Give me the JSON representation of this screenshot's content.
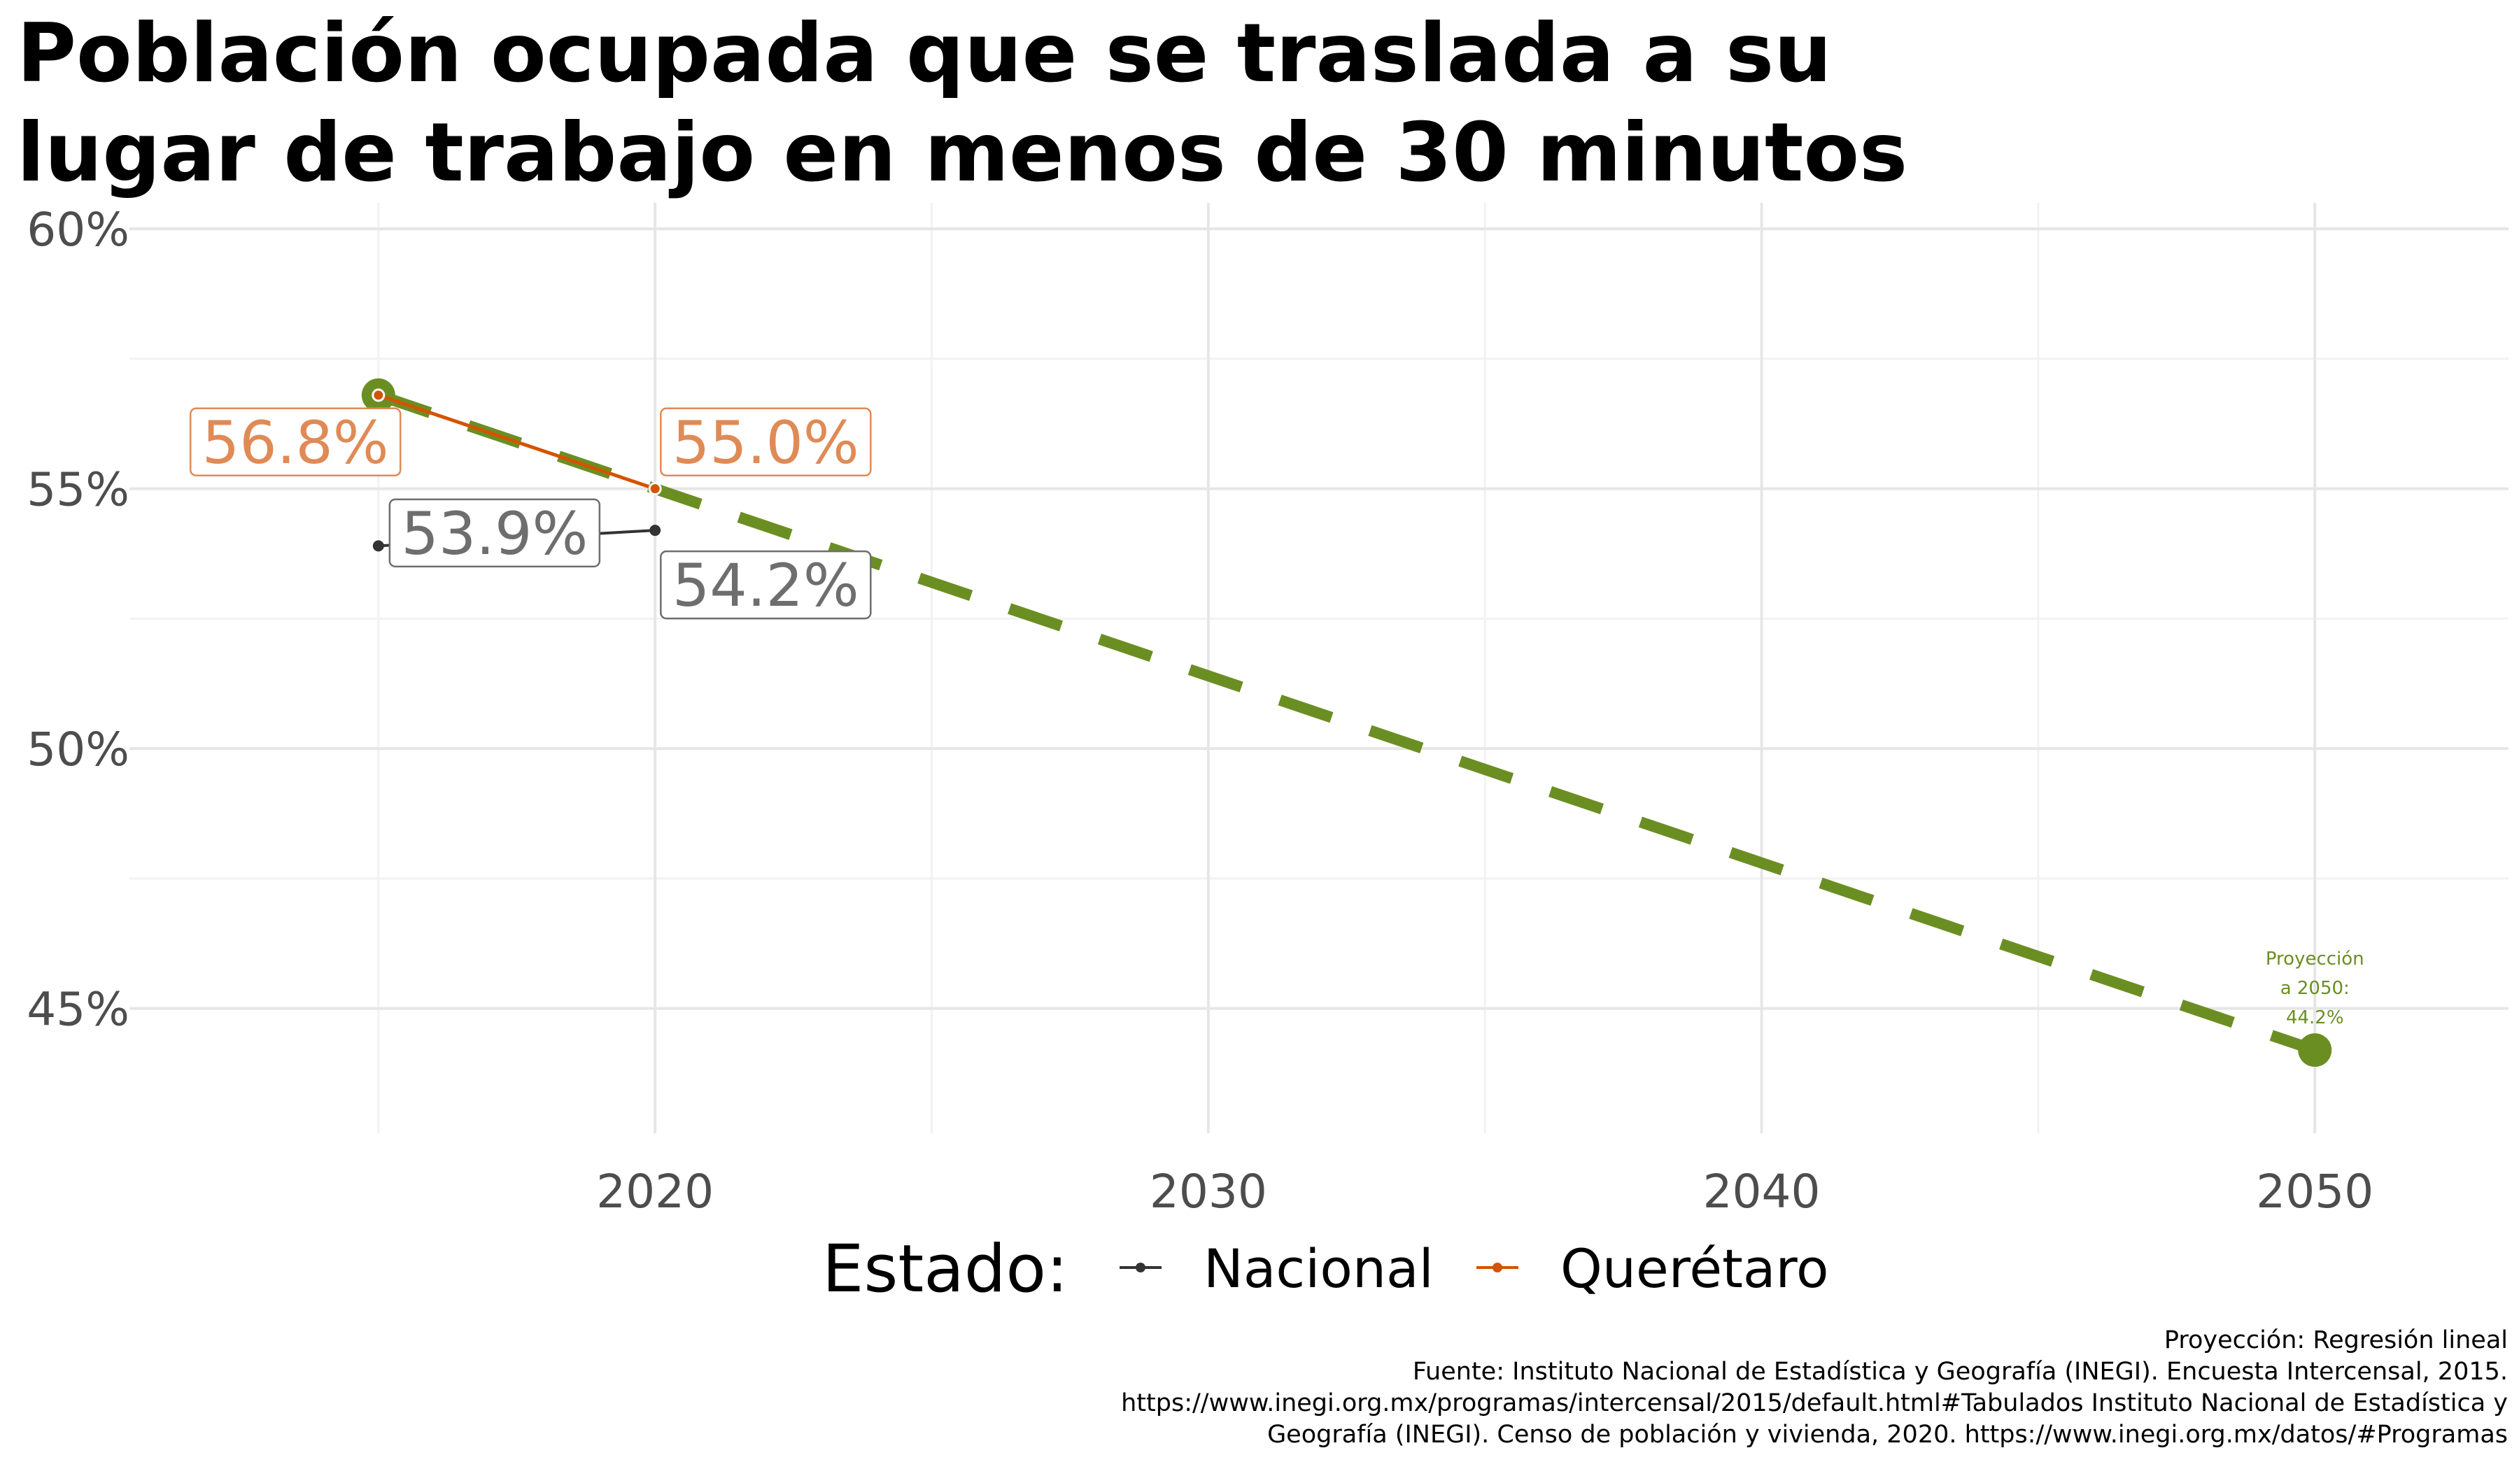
{
  "title_lines": [
    "Población ocupada que se traslada a su",
    "lugar de trabajo en menos de 30 minutos"
  ],
  "legend": {
    "title": "Estado:",
    "items": [
      {
        "label": "Nacional",
        "color": "#333333"
      },
      {
        "label": "Querétaro",
        "color": "#d35400"
      }
    ]
  },
  "projection_note": [
    "Proyección",
    "a 2050:",
    "44.2%"
  ],
  "caption_lines": [
    "Proyección: Regresión lineal",
    "Fuente: Instituto Nacional de Estadística y Geografía (INEGI). Encuesta Intercensal, 2015.",
    "https://www.inegi.org.mx/programas/intercensal/2015/default.html#Tabulados Instituto Nacional de Estadística y",
    "Geografía (INEGI). Censo de población y vivienda, 2020. https://www.inegi.org.mx/datos/#Programas"
  ],
  "colors": {
    "nacional": "#333333",
    "queretaro": "#d35400",
    "queretaro_label": "#e08a55",
    "nacional_label": "#6e6e6e",
    "projection": "#6b8e23",
    "grid_major": "#e6e6e6",
    "grid_minor": "#f2f2f2"
  },
  "chart_data": {
    "type": "line",
    "title": "Población ocupada que se traslada a su lugar de trabajo en menos de 30 minutos",
    "xlim": [
      2010.5,
      2053.5
    ],
    "ylim": [
      42.6,
      60.5
    ],
    "x_ticks": [
      2020,
      2030,
      2040,
      2050
    ],
    "x_tick_labels": [
      "2020",
      "2030",
      "2040",
      "2050"
    ],
    "y_ticks": [
      45,
      50,
      55,
      60
    ],
    "y_tick_labels": [
      "45%",
      "50%",
      "55%",
      "60%"
    ],
    "grid": true,
    "legend_position": "bottom",
    "series": [
      {
        "name": "Nacional",
        "x": [
          2015,
          2020
        ],
        "y": [
          53.9,
          54.2
        ],
        "labels": [
          "53.9%",
          "54.2%"
        ]
      },
      {
        "name": "Querétaro",
        "x": [
          2015,
          2020
        ],
        "y": [
          56.8,
          55.0
        ],
        "labels": [
          "56.8%",
          "55.0%"
        ]
      },
      {
        "name": "Proyección",
        "style": "dashed",
        "x": [
          2015,
          2050
        ],
        "y": [
          56.8,
          44.2
        ]
      }
    ],
    "projection_point": {
      "x": 2050,
      "y": 44.2
    }
  }
}
